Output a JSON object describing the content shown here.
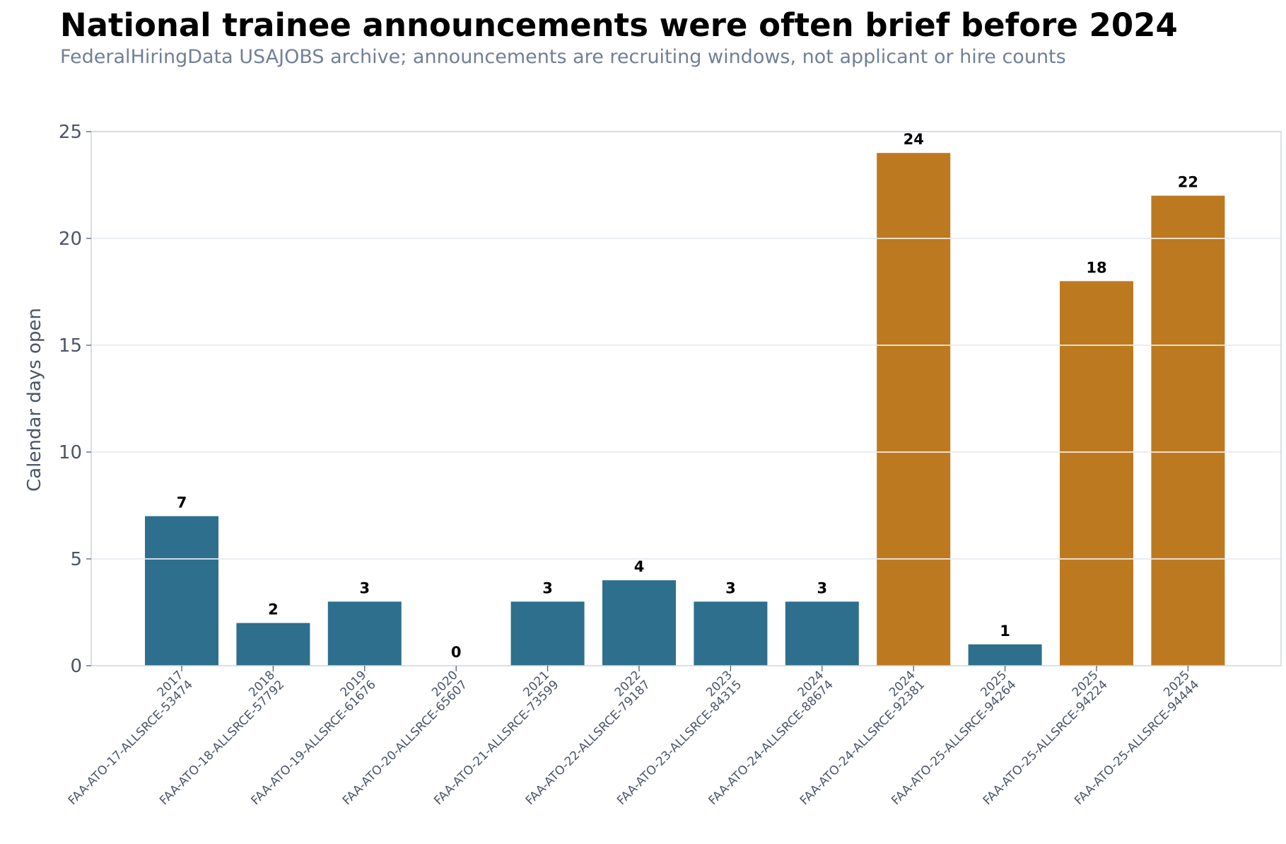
{
  "chart_data": {
    "type": "bar",
    "title": "National trainee announcements were often brief before 2024",
    "subtitle": "FederalHiringData USAJOBS archive; announcements are recruiting windows, not applicant or hire counts",
    "ylabel": "Calendar days open",
    "xlabel": "",
    "ylim": [
      0,
      25
    ],
    "yticks": [
      0,
      5,
      10,
      15,
      20,
      25
    ],
    "grid": "horizontal",
    "categories": [
      {
        "year": "2017",
        "id": "FAA-ATO-17-ALLSRCE-53474"
      },
      {
        "year": "2018",
        "id": "FAA-ATO-18-ALLSRCE-57792"
      },
      {
        "year": "2019",
        "id": "FAA-ATO-19-ALLSRCE-61676"
      },
      {
        "year": "2020",
        "id": "FAA-ATO-20-ALLSRCE-65607"
      },
      {
        "year": "2021",
        "id": "FAA-ATO-21-ALLSRCE-73599"
      },
      {
        "year": "2022",
        "id": "FAA-ATO-22-ALLSRCE-79187"
      },
      {
        "year": "2023",
        "id": "FAA-ATO-23-ALLSRCE-84315"
      },
      {
        "year": "2024",
        "id": "FAA-ATO-24-ALLSRCE-88674"
      },
      {
        "year": "2024",
        "id": "FAA-ATO-24-ALLSRCE-92381"
      },
      {
        "year": "2025",
        "id": "FAA-ATO-25-ALLSRCE-94264"
      },
      {
        "year": "2025",
        "id": "FAA-ATO-25-ALLSRCE-94224"
      },
      {
        "year": "2025",
        "id": "FAA-ATO-25-ALLSRCE-94444"
      }
    ],
    "values": [
      7,
      2,
      3,
      0,
      3,
      4,
      3,
      3,
      24,
      1,
      18,
      22
    ],
    "bar_colors": [
      "#2e6f8e",
      "#2e6f8e",
      "#2e6f8e",
      "#2e6f8e",
      "#2e6f8e",
      "#2e6f8e",
      "#2e6f8e",
      "#2e6f8e",
      "#bd7920",
      "#2e6f8e",
      "#bd7920",
      "#bd7920"
    ],
    "colors": {
      "grid": "#e2e8f0",
      "axis": "#cbd5e0",
      "tick_text": "#4a5568"
    }
  }
}
